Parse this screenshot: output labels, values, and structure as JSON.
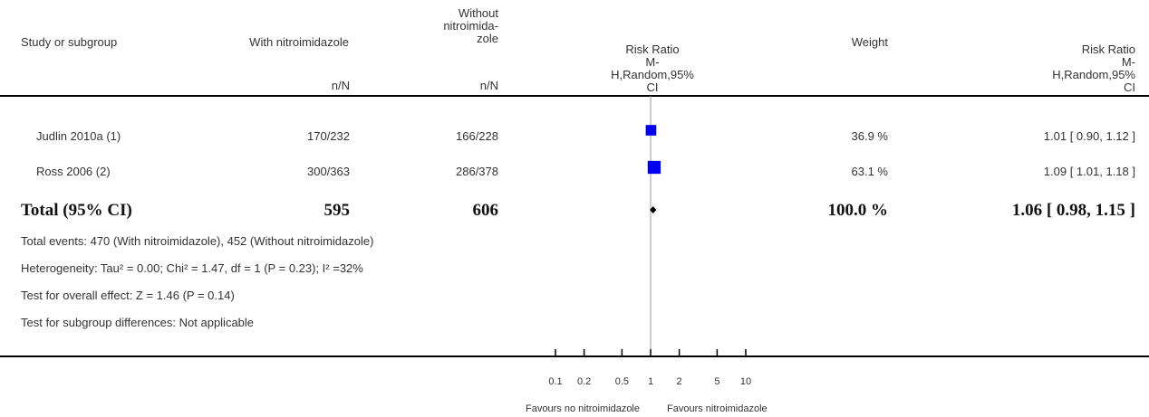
{
  "header": {
    "study": "Study or subgroup",
    "treat": "With nitroimidazole",
    "ctrl_l1": "Without",
    "ctrl_l2": "nitroimida-",
    "ctrl_l3": "zole",
    "treat_unit": "n/N",
    "ctrl_unit": "n/N",
    "rr_plot_l1": "Risk Ratio",
    "rr_plot_l2": "M-",
    "rr_plot_l3": "H,Random,95%",
    "rr_plot_l4": "CI",
    "weight": "Weight",
    "rr_l1": "Risk Ratio",
    "rr_l2": "M-",
    "rr_l3": "H,Random,95%",
    "rr_l4": "CI"
  },
  "studies": [
    {
      "name": "Judlin 2010a (1)",
      "treat": "170/232",
      "ctrl": "166/228",
      "weight": "36.9 %",
      "ci_text": "1.01 [ 0.90, 1.12 ]"
    },
    {
      "name": "Ross 2006 (2)",
      "treat": "300/363",
      "ctrl": "286/378",
      "weight": "63.1 %",
      "ci_text": "1.09 [ 1.01, 1.18 ]"
    }
  ],
  "total": {
    "label": "Total (95% CI)",
    "treat": "595",
    "ctrl": "606",
    "weight": "100.0 %",
    "ci_text": "1.06 [ 0.98, 1.15 ]"
  },
  "notes": {
    "events": "Total events: 470 (With nitroimidazole), 452 (Without nitroimidazole)",
    "heterogeneity": "Heterogeneity: Tau² = 0.00; Chi² = 1.47, df = 1 (P = 0.23); I² =32%",
    "overall": "Test for overall effect: Z = 1.46 (P = 0.14)",
    "subgroup": "Test for subgroup differences: Not applicable"
  },
  "axis": {
    "ticks": [
      "0.1",
      "0.2",
      "0.5",
      "1",
      "2",
      "5",
      "10"
    ],
    "favours_left": "Favours no nitroimidazole",
    "favours_right": "Favours nitroimidazole"
  },
  "colors": {
    "marker": "#0000ee",
    "diamond": "#000000",
    "rule": "#000000"
  },
  "chart_data": {
    "type": "scatter",
    "scale": "log",
    "xlim": [
      0.1,
      10
    ],
    "null_value": 1,
    "series": [
      {
        "name": "Judlin 2010a (1)",
        "estimate": 1.01,
        "lower": 0.9,
        "upper": 1.12,
        "weight": 36.9
      },
      {
        "name": "Ross 2006 (2)",
        "estimate": 1.09,
        "lower": 1.01,
        "upper": 1.18,
        "weight": 63.1
      }
    ],
    "pooled": {
      "estimate": 1.06,
      "lower": 0.98,
      "upper": 1.15
    }
  }
}
